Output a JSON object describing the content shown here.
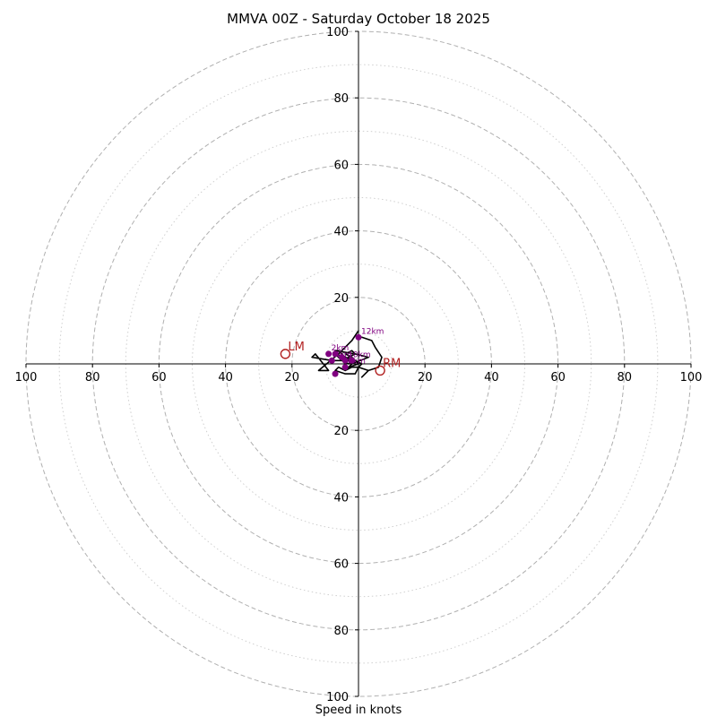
{
  "chart_data": {
    "type": "scatter",
    "subtype": "hodograph",
    "title": "MMVA 00Z - Saturday October 18 2025",
    "xlabel": "Speed in knots",
    "ylabel": "",
    "xlim": [
      -100,
      100
    ],
    "ylim": [
      -100,
      100
    ],
    "rings_major": [
      20,
      40,
      60,
      80,
      100
    ],
    "rings_minor": [
      10,
      30,
      50,
      70,
      90
    ],
    "tick_labels": {
      "x": [
        "100",
        "80",
        "60",
        "40",
        "20",
        "20",
        "40",
        "60",
        "80",
        "100"
      ],
      "y": [
        "100",
        "80",
        "60",
        "40",
        "20",
        "20",
        "40",
        "60",
        "80",
        "100"
      ]
    },
    "grid": true,
    "hodograph_trace": {
      "x": [
        0,
        -2,
        -6,
        -12,
        -9,
        -13,
        -14,
        -8,
        -5,
        -3,
        -2,
        3,
        -1,
        -7,
        -6,
        -5,
        -4,
        -3,
        -2,
        -1,
        -2,
        -4,
        -2,
        -1,
        -3,
        -2,
        -3,
        -5,
        -7,
        -4,
        -1,
        0,
        -3,
        -4,
        -3,
        -2,
        -1,
        1,
        0,
        -2,
        -4,
        -6,
        -7,
        -4,
        -1,
        0,
        3,
        2,
        1,
        3,
        6,
        7,
        5,
        4,
        1,
        0
      ],
      "y": [
        10,
        7,
        3,
        -2,
        -2,
        3,
        2,
        1,
        1,
        2,
        0,
        2,
        3,
        4,
        4,
        3,
        2,
        1,
        0,
        1,
        2,
        3,
        4,
        3,
        2,
        1,
        0,
        1,
        3,
        2,
        1,
        0,
        -1,
        -2,
        -1,
        0,
        1,
        0,
        -1,
        -1,
        -2,
        -1,
        -2,
        -3,
        -3,
        -1,
        -2,
        -3,
        -4,
        -2,
        -1,
        2,
        5,
        7,
        8,
        8
      ]
    },
    "height_points": [
      {
        "label": "",
        "x": -7,
        "y": 3
      },
      {
        "label": "2km",
        "x": -9,
        "y": 3
      },
      {
        "label": "4km",
        "x": -8,
        "y": 1
      },
      {
        "label": "",
        "x": -5,
        "y": 2
      },
      {
        "label": "",
        "x": -7,
        "y": -3
      },
      {
        "label": "8km",
        "x": -4,
        "y": -1
      },
      {
        "label": "10km",
        "x": -4,
        "y": 1
      },
      {
        "label": "",
        "x": -2,
        "y": 1
      },
      {
        "label": "12km",
        "x": 0,
        "y": 8
      }
    ],
    "storm_motion": [
      {
        "label": "LM",
        "x": -22,
        "y": 3
      },
      {
        "label": "RM",
        "x": 6.5,
        "y": -2
      }
    ],
    "colors": {
      "trace": "#000000",
      "height_points": "#800080",
      "storm_motion": "#b22222",
      "grid": "#b0b0b0"
    }
  }
}
